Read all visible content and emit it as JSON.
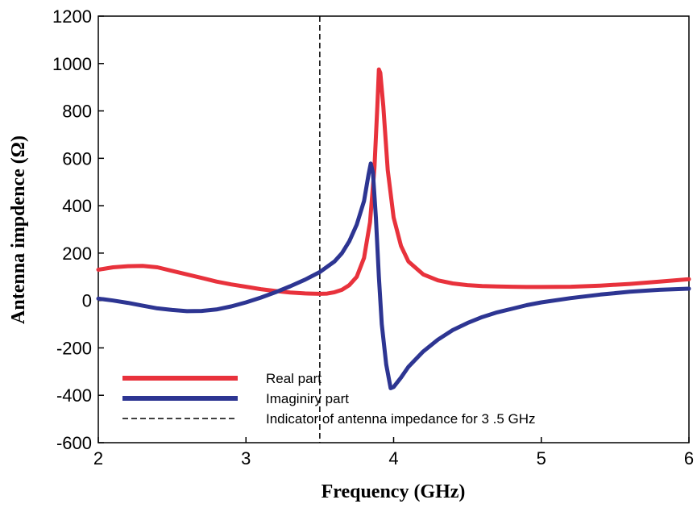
{
  "chart_data": {
    "type": "line",
    "xlabel": "Frequency (GHz)",
    "ylabel": "Antenna impdence (Ω)",
    "xlim": [
      2,
      6
    ],
    "ylim": [
      -600,
      1200
    ],
    "x_ticks": [
      "2",
      "3",
      "4",
      "5",
      "6"
    ],
    "y_ticks": [
      "-600",
      "-400",
      "-200",
      "0",
      "200",
      "400",
      "600",
      "800",
      "1000",
      "1200"
    ],
    "grid": false,
    "legend_position": "bottom-left",
    "series": [
      {
        "name": "Real part",
        "color": "#e8323c",
        "points": [
          [
            2.0,
            130
          ],
          [
            2.1,
            140
          ],
          [
            2.2,
            145
          ],
          [
            2.3,
            146
          ],
          [
            2.4,
            140
          ],
          [
            2.5,
            125
          ],
          [
            2.6,
            110
          ],
          [
            2.7,
            95
          ],
          [
            2.8,
            80
          ],
          [
            2.9,
            68
          ],
          [
            3.0,
            58
          ],
          [
            3.1,
            48
          ],
          [
            3.2,
            40
          ],
          [
            3.3,
            34
          ],
          [
            3.4,
            30
          ],
          [
            3.5,
            28
          ],
          [
            3.55,
            29
          ],
          [
            3.6,
            35
          ],
          [
            3.65,
            45
          ],
          [
            3.7,
            65
          ],
          [
            3.75,
            100
          ],
          [
            3.8,
            180
          ],
          [
            3.84,
            330
          ],
          [
            3.87,
            560
          ],
          [
            3.89,
            820
          ],
          [
            3.9,
            975
          ],
          [
            3.91,
            960
          ],
          [
            3.93,
            820
          ],
          [
            3.96,
            550
          ],
          [
            4.0,
            350
          ],
          [
            4.05,
            230
          ],
          [
            4.1,
            165
          ],
          [
            4.2,
            110
          ],
          [
            4.3,
            85
          ],
          [
            4.4,
            72
          ],
          [
            4.5,
            65
          ],
          [
            4.6,
            61
          ],
          [
            4.7,
            59
          ],
          [
            4.8,
            58
          ],
          [
            4.9,
            57
          ],
          [
            5.0,
            57
          ],
          [
            5.2,
            58
          ],
          [
            5.4,
            63
          ],
          [
            5.6,
            70
          ],
          [
            5.8,
            80
          ],
          [
            6.0,
            90
          ]
        ]
      },
      {
        "name": "Imaginiry part",
        "color": "#2d3592",
        "points": [
          [
            2.0,
            8
          ],
          [
            2.1,
            0
          ],
          [
            2.2,
            -10
          ],
          [
            2.3,
            -22
          ],
          [
            2.4,
            -33
          ],
          [
            2.5,
            -40
          ],
          [
            2.6,
            -45
          ],
          [
            2.7,
            -44
          ],
          [
            2.8,
            -38
          ],
          [
            2.9,
            -25
          ],
          [
            3.0,
            -8
          ],
          [
            3.1,
            12
          ],
          [
            3.2,
            35
          ],
          [
            3.3,
            60
          ],
          [
            3.4,
            88
          ],
          [
            3.5,
            120
          ],
          [
            3.6,
            165
          ],
          [
            3.65,
            200
          ],
          [
            3.7,
            250
          ],
          [
            3.75,
            320
          ],
          [
            3.8,
            420
          ],
          [
            3.83,
            530
          ],
          [
            3.845,
            578
          ],
          [
            3.86,
            540
          ],
          [
            3.88,
            350
          ],
          [
            3.9,
            100
          ],
          [
            3.92,
            -100
          ],
          [
            3.95,
            -270
          ],
          [
            3.98,
            -370
          ],
          [
            4.0,
            -365
          ],
          [
            4.05,
            -325
          ],
          [
            4.1,
            -280
          ],
          [
            4.2,
            -215
          ],
          [
            4.3,
            -165
          ],
          [
            4.4,
            -125
          ],
          [
            4.5,
            -95
          ],
          [
            4.6,
            -70
          ],
          [
            4.7,
            -50
          ],
          [
            4.8,
            -35
          ],
          [
            4.9,
            -20
          ],
          [
            5.0,
            -8
          ],
          [
            5.2,
            10
          ],
          [
            5.4,
            25
          ],
          [
            5.6,
            37
          ],
          [
            5.8,
            45
          ],
          [
            6.0,
            50
          ]
        ]
      },
      {
        "name": "Indicator of antenna impedance for 3 .5 GHz",
        "color": "#000000",
        "style": "dashed",
        "vertical_at_x": 3.5
      }
    ]
  }
}
